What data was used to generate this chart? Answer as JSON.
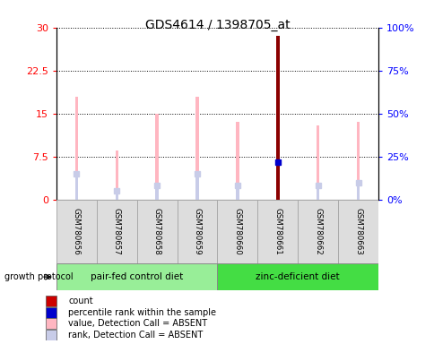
{
  "title": "GDS4614 / 1398705_at",
  "samples": [
    "GSM780656",
    "GSM780657",
    "GSM780658",
    "GSM780659",
    "GSM780660",
    "GSM780661",
    "GSM780662",
    "GSM780663"
  ],
  "value_absent": [
    18.0,
    8.5,
    15.0,
    18.0,
    13.5,
    28.5,
    13.0,
    13.5
  ],
  "rank_absent": [
    4.0,
    2.0,
    2.5,
    4.0,
    2.5,
    0,
    2.5,
    3.0
  ],
  "percentile_rank": [
    4.5,
    1.5,
    2.5,
    4.5,
    2.5,
    6.5,
    2.5,
    3.0
  ],
  "count_value": 28.5,
  "count_idx": 5,
  "ylim_left": [
    0,
    30
  ],
  "ylim_right": [
    0,
    100
  ],
  "yticks_left": [
    0,
    7.5,
    15,
    22.5,
    30
  ],
  "yticks_right": [
    0,
    25,
    50,
    75,
    100
  ],
  "ytick_labels_left": [
    "0",
    "7.5",
    "15",
    "22.5",
    "30"
  ],
  "ytick_labels_right": [
    "0%",
    "25%",
    "50%",
    "75%",
    "100%"
  ],
  "color_value_absent": "#FFB6C1",
  "color_rank_absent": "#C8CCE8",
  "color_count": "#8B0000",
  "color_percentile": "#0000CC",
  "group1_label": "pair-fed control diet",
  "group2_label": "zinc-deficient diet",
  "group1_color": "#98EE98",
  "group2_color": "#44DD44",
  "group1_indices": [
    0,
    1,
    2,
    3
  ],
  "group2_indices": [
    4,
    5,
    6,
    7
  ],
  "protocol_label": "growth protocol",
  "legend_items": [
    {
      "label": "count",
      "color": "#CC0000"
    },
    {
      "label": "percentile rank within the sample",
      "color": "#0000CC"
    },
    {
      "label": "value, Detection Call = ABSENT",
      "color": "#FFB6C1"
    },
    {
      "label": "rank, Detection Call = ABSENT",
      "color": "#C8CCE8"
    }
  ],
  "thin_bar_width": 0.08,
  "title_fontsize": 10,
  "tick_fontsize": 8,
  "label_fontsize": 7.5
}
